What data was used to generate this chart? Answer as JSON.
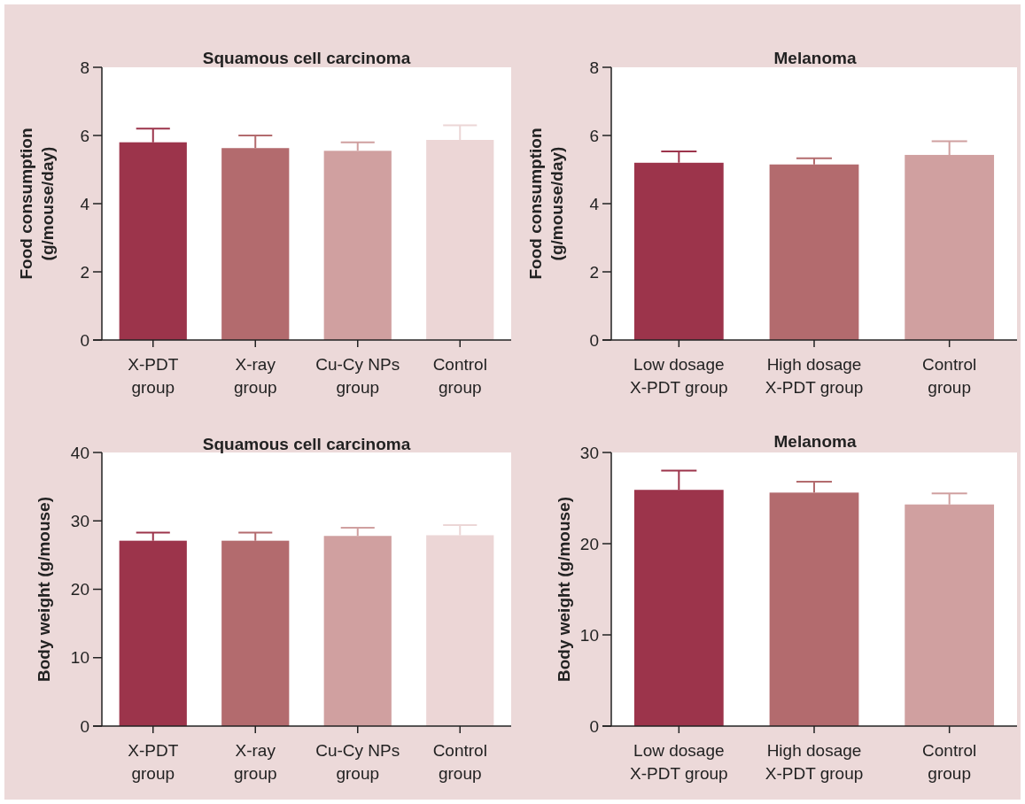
{
  "chart_data": [
    {
      "type": "bar",
      "title": "Squamous cell carcinoma",
      "ylabel": "Food consumption\n(g/mouse/day)",
      "categories": [
        "X-PDT\ngroup",
        "X-ray\ngroup",
        "Cu-Cy NPs\ngroup",
        "Control\ngroup"
      ],
      "values": [
        5.8,
        5.63,
        5.55,
        5.87
      ],
      "errors": [
        [
          5.8,
          6.2
        ],
        [
          5.63,
          6.0
        ],
        [
          5.55,
          5.8
        ],
        [
          5.87,
          6.3
        ]
      ],
      "colors": [
        "#9c344b",
        "#b36b6e",
        "#d0a0a0",
        "#ecd6d6"
      ],
      "ylim": [
        0,
        8
      ],
      "yticks": [
        0,
        2,
        4,
        6,
        8
      ]
    },
    {
      "type": "bar",
      "title": "Melanoma",
      "ylabel": "Food consumption\n(g/mouse/day)",
      "categories": [
        "Low dosage\nX-PDT group",
        "High dosage\nX-PDT group",
        "Control\ngroup"
      ],
      "values": [
        5.2,
        5.15,
        5.43
      ],
      "errors": [
        [
          5.2,
          5.53
        ],
        [
          5.15,
          5.33
        ],
        [
          5.43,
          5.83
        ]
      ],
      "colors": [
        "#9c344b",
        "#b36b6e",
        "#d0a0a0"
      ],
      "ylim": [
        0,
        8
      ],
      "yticks": [
        0,
        2,
        4,
        6,
        8
      ]
    },
    {
      "type": "bar",
      "title": "Squamous cell carcinoma",
      "ylabel": "Body weight (g/mouse)",
      "categories": [
        "X-PDT\ngroup",
        "X-ray\ngroup",
        "Cu-Cy NPs\ngroup",
        "Control\ngroup"
      ],
      "values": [
        27.1,
        27.1,
        27.8,
        27.9
      ],
      "errors": [
        [
          27.1,
          28.3
        ],
        [
          27.1,
          28.3
        ],
        [
          27.8,
          29.0
        ],
        [
          27.9,
          29.4
        ]
      ],
      "colors": [
        "#9c344b",
        "#b36b6e",
        "#d0a0a0",
        "#ecd6d6"
      ],
      "ylim": [
        0,
        40
      ],
      "yticks": [
        0,
        10,
        20,
        30,
        40
      ]
    },
    {
      "type": "bar",
      "title": "Melanoma",
      "ylabel": "Body weight (g/mouse)",
      "categories": [
        "Low dosage\nX-PDT group",
        "High dosage\nX-PDT group",
        "Control\ngroup"
      ],
      "values": [
        25.9,
        25.6,
        24.3
      ],
      "errors": [
        [
          25.9,
          28.0
        ],
        [
          25.6,
          26.8
        ],
        [
          24.3,
          25.5
        ]
      ],
      "colors": [
        "#9c344b",
        "#b36b6e",
        "#d0a0a0"
      ],
      "ylim": [
        0,
        30
      ],
      "yticks": [
        0,
        10,
        20,
        30
      ]
    }
  ]
}
